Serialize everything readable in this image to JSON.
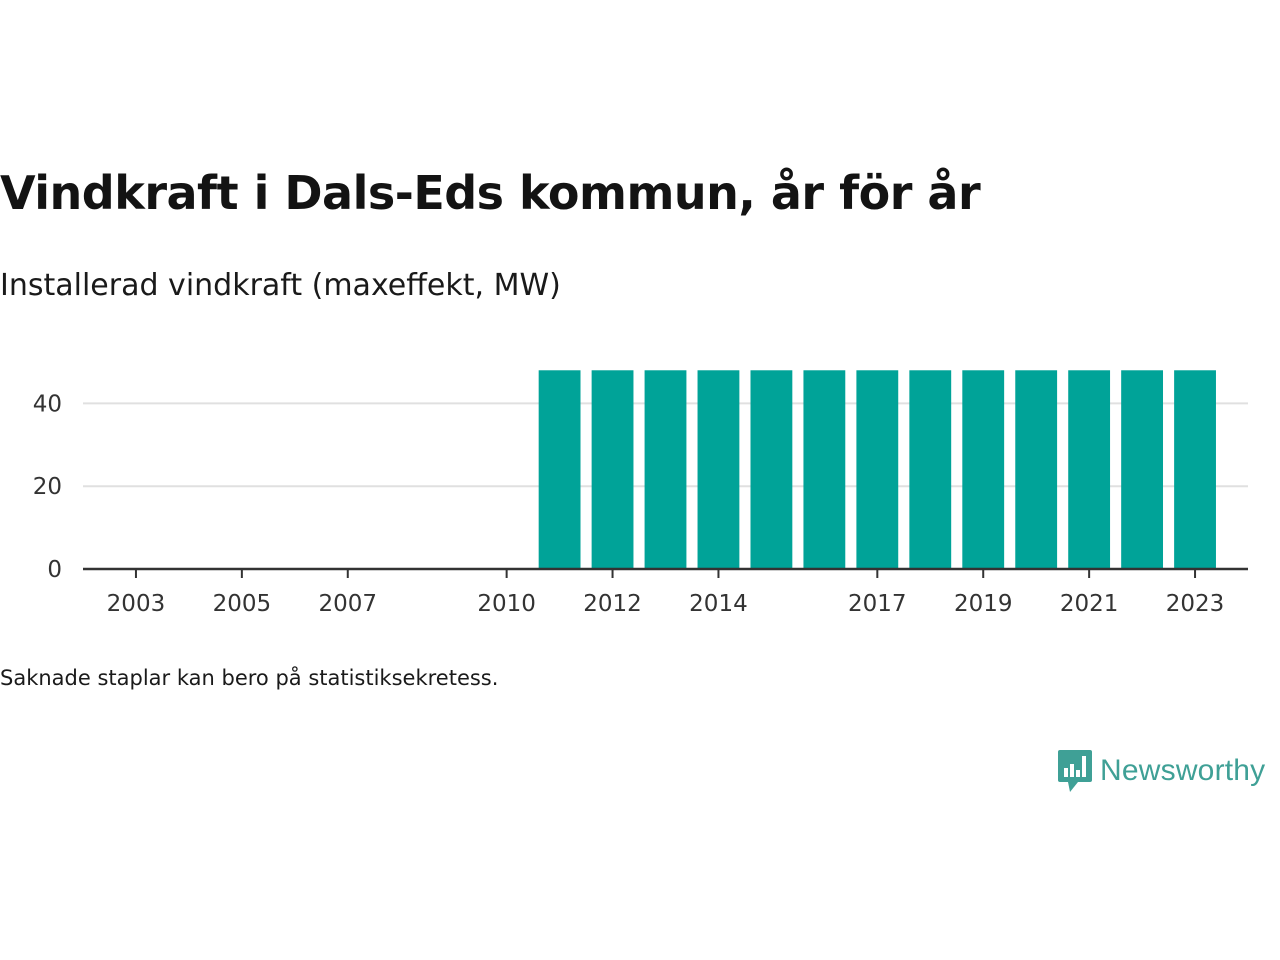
{
  "title": "Vindkraft i Dals-Eds kommun, år för år",
  "subtitle": "Installerad vindkraft (maxeffekt, MW)",
  "note": "Saknade staplar kan bero på statistiksekretess.",
  "brand": {
    "name": "Newsworthy",
    "icon": "newsworthy-logo-icon",
    "color": "#3fa096"
  },
  "chart_data": {
    "type": "bar",
    "x": [
      2011,
      2012,
      2013,
      2014,
      2015,
      2016,
      2017,
      2018,
      2019,
      2020,
      2021,
      2022,
      2023
    ],
    "values": [
      48,
      48,
      48,
      48,
      48,
      48,
      48,
      48,
      48,
      48,
      48,
      48,
      48
    ],
    "xlim": [
      2002,
      2024
    ],
    "ylim": [
      0,
      50
    ],
    "x_ticks": [
      2003,
      2005,
      2007,
      2010,
      2012,
      2014,
      2017,
      2019,
      2021,
      2023
    ],
    "y_ticks": [
      0,
      20,
      40
    ],
    "grid": true,
    "bar_color": "#00a398",
    "xlabel": "",
    "ylabel": ""
  }
}
